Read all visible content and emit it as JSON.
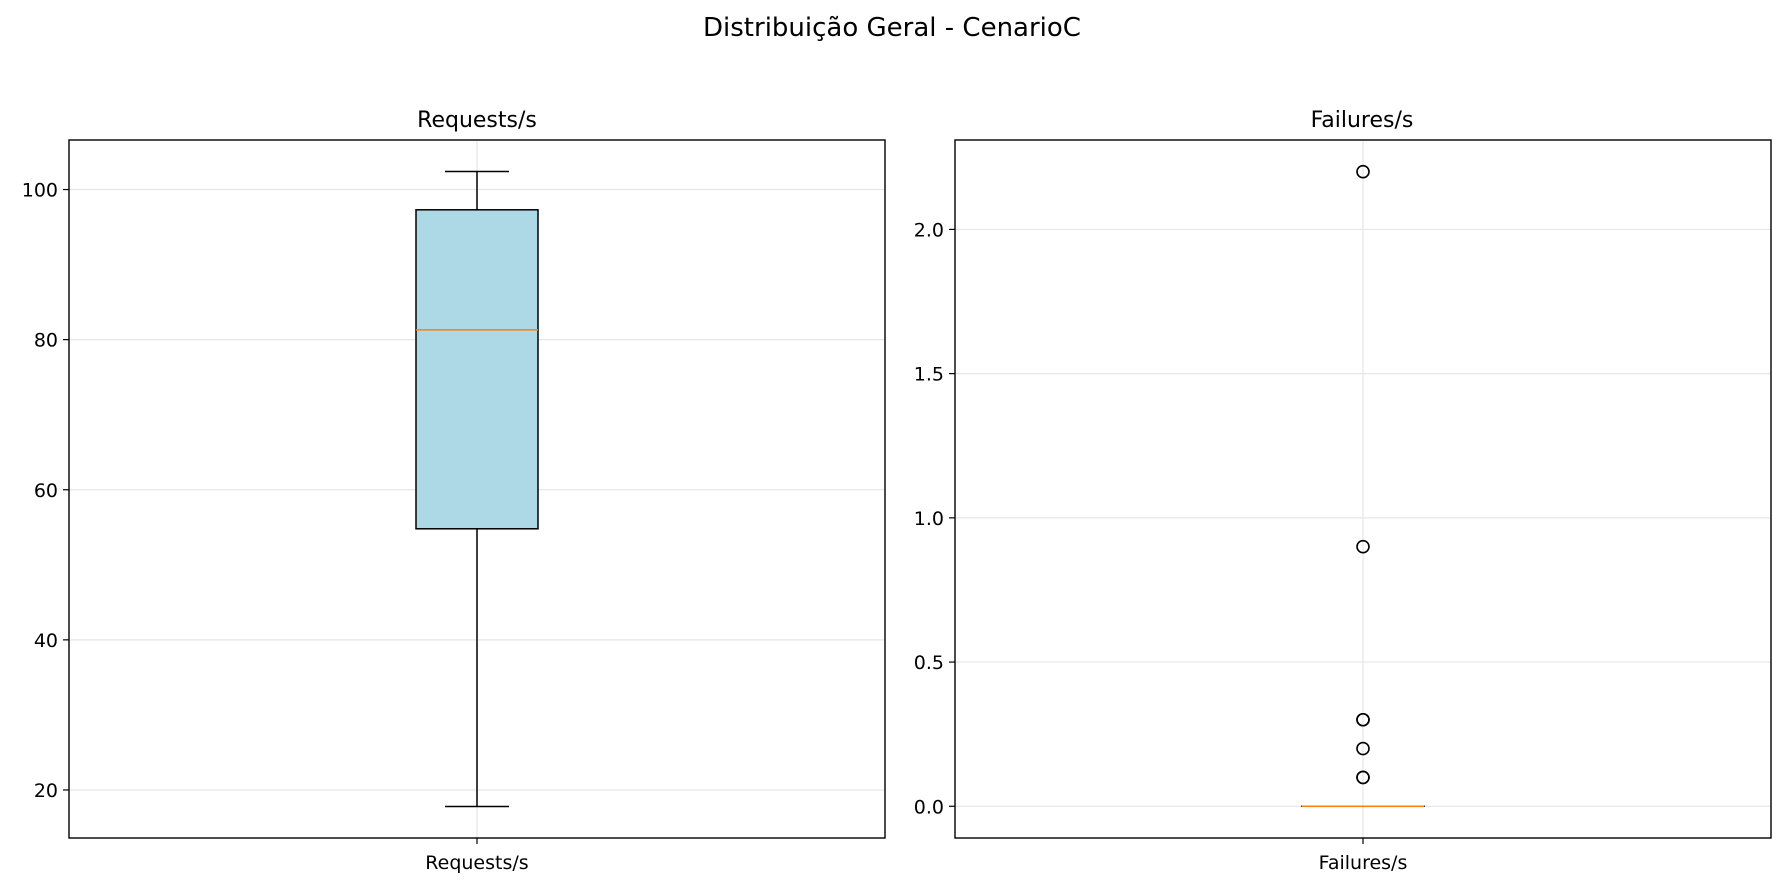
{
  "title": "Distribuição Geral - CenarioC",
  "chart_data": [
    {
      "type": "boxplot",
      "title": "Requests/s",
      "categories": [
        "Requests/s"
      ],
      "box": {
        "whisker_low": 17.8,
        "q1": 54.8,
        "median": 81.3,
        "q3": 97.3,
        "whisker_high": 102.4
      },
      "outliers": [],
      "ylim": [
        13.6,
        106.6
      ],
      "yticks": [
        20,
        40,
        60,
        80,
        100
      ],
      "ytick_labels": [
        "20",
        "40",
        "60",
        "80",
        "100"
      ],
      "grid": true,
      "box_fill": "#add8e6",
      "median_color": "#ff7f0e"
    },
    {
      "type": "boxplot",
      "title": "Failures/s",
      "categories": [
        "Failures/s"
      ],
      "box": {
        "whisker_low": 0.0,
        "q1": 0.0,
        "median": 0.0,
        "q3": 0.0,
        "whisker_high": 0.0
      },
      "outliers": [
        0.1,
        0.1,
        0.2,
        0.3,
        0.3,
        0.9,
        2.2
      ],
      "ylim": [
        -0.11,
        2.31
      ],
      "yticks": [
        0.0,
        0.5,
        1.0,
        1.5,
        2.0
      ],
      "ytick_labels": [
        "0.0",
        "0.5",
        "1.0",
        "1.5",
        "2.0"
      ],
      "grid": true,
      "box_fill": "#add8e6",
      "median_color": "#ff7f0e"
    }
  ]
}
